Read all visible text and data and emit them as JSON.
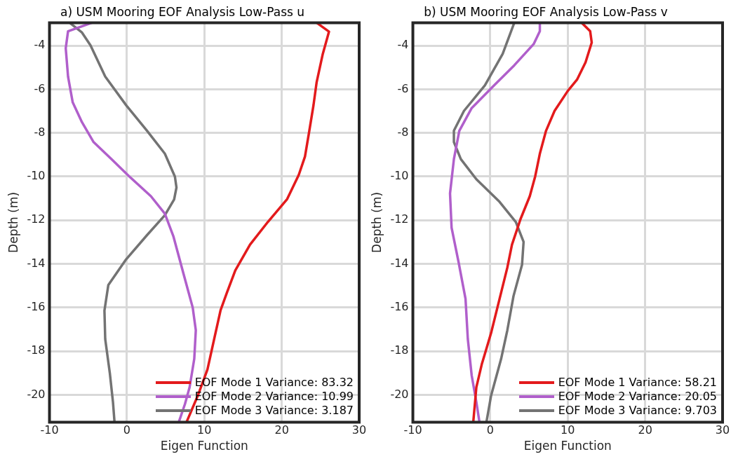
{
  "chart_data": [
    {
      "type": "line",
      "title": "a) USM Mooring EOF Analysis Low-Pass u",
      "xlabel": "Eigen Function",
      "ylabel": "Depth (m)",
      "xlim": [
        -10,
        30
      ],
      "ylim": [
        -21.25,
        -2.95
      ],
      "xticks": [
        -10,
        0,
        10,
        20,
        30
      ],
      "yticks": [
        -20,
        -18,
        -16,
        -14,
        -12,
        -10,
        -8,
        -6,
        -4
      ],
      "grid": true,
      "legend": "bottom right",
      "series": [
        {
          "name": "EOF Mode 1 Variance: 83.32",
          "color": "#e31a1c",
          "x": [
            24.5,
            26.1,
            25.3,
            24.5,
            24.1,
            23.5,
            23.0,
            22.2,
            20.7,
            18.2,
            15.9,
            14.0,
            12.9,
            12.1,
            11.3,
            10.4,
            9.2,
            7.7
          ],
          "values": [
            -2.95,
            -3.36,
            -4.38,
            -5.69,
            -6.73,
            -8.03,
            -9.08,
            -9.92,
            -11.03,
            -12.08,
            -13.12,
            -14.3,
            -15.33,
            -16.12,
            -17.4,
            -18.84,
            -20.0,
            -21.25
          ]
        },
        {
          "name": "EOF Mode 2 Variance: 10.99",
          "color": "#b05fcb",
          "x": [
            -4.5,
            -7.6,
            -7.9,
            -7.6,
            -7.0,
            -5.8,
            -4.3,
            -2.0,
            0.3,
            3.1,
            4.9,
            6.0,
            7.3,
            8.5,
            8.9,
            8.7,
            8.1,
            7.5,
            6.7
          ],
          "values": [
            -2.95,
            -3.34,
            -4.12,
            -5.42,
            -6.6,
            -7.51,
            -8.42,
            -9.2,
            -9.99,
            -10.9,
            -11.7,
            -12.73,
            -14.44,
            -16.0,
            -17.04,
            -18.35,
            -19.65,
            -20.42,
            -21.25
          ]
        },
        {
          "name": "EOF Mode 3 Variance: 3.187",
          "color": "#737373",
          "x": [
            -7.4,
            -5.8,
            -4.7,
            -2.8,
            -0.1,
            2.6,
            4.9,
            6.2,
            6.4,
            6.1,
            4.9,
            2.6,
            -0.1,
            -2.4,
            -2.9,
            -2.8,
            -2.2,
            -1.8,
            -1.6
          ],
          "values": [
            -2.95,
            -3.4,
            -3.99,
            -5.42,
            -6.73,
            -7.9,
            -8.95,
            -10.0,
            -10.5,
            -11.05,
            -11.77,
            -12.68,
            -13.79,
            -14.97,
            -16.14,
            -17.45,
            -19.02,
            -20.33,
            -21.25
          ]
        }
      ]
    },
    {
      "type": "line",
      "title": "b) USM Mooring EOF Analysis Low-Pass v",
      "xlabel": "Eigen Function",
      "ylabel": "Depth (m)",
      "xlim": [
        -10,
        30
      ],
      "ylim": [
        -21.25,
        -2.95
      ],
      "xticks": [
        -10,
        0,
        10,
        20,
        30
      ],
      "yticks": [
        -20,
        -18,
        -16,
        -14,
        -12,
        -10,
        -8,
        -6,
        -4
      ],
      "grid": true,
      "legend": "bottom right",
      "series": [
        {
          "name": "EOF Mode 1 Variance: 58.21",
          "color": "#e31a1c",
          "x": [
            11.8,
            12.9,
            13.1,
            12.3,
            11.2,
            10.0,
            8.3,
            7.2,
            6.4,
            5.8,
            5.1,
            3.9,
            2.8,
            2.2,
            1.2,
            0.1,
            -1.1,
            -1.8,
            -2.2
          ],
          "values": [
            -2.95,
            -3.34,
            -3.86,
            -4.77,
            -5.56,
            -6.08,
            -6.99,
            -7.9,
            -8.95,
            -9.99,
            -10.9,
            -11.95,
            -13.12,
            -14.17,
            -15.6,
            -17.17,
            -18.6,
            -19.65,
            -21.25
          ]
        },
        {
          "name": "EOF Mode 2 Variance: 20.05",
          "color": "#b05fcb",
          "x": [
            6.4,
            6.4,
            5.6,
            3.1,
            0.5,
            -2.4,
            -4.0,
            -4.7,
            -5.2,
            -5.0,
            -4.1,
            -3.2,
            -2.9,
            -2.4,
            -1.8,
            -1.4
          ],
          "values": [
            -2.95,
            -3.34,
            -3.93,
            -4.9,
            -5.82,
            -6.86,
            -7.9,
            -9.2,
            -10.77,
            -12.34,
            -13.91,
            -15.6,
            -17.45,
            -19.12,
            -20.33,
            -21.25
          ]
        },
        {
          "name": "EOF Mode 3 Variance: 9.703",
          "color": "#737373",
          "x": [
            3.1,
            1.6,
            -0.7,
            -3.4,
            -4.7,
            -4.7,
            -3.8,
            -1.8,
            1.2,
            3.3,
            4.3,
            4.1,
            3.0,
            2.2,
            1.4,
            0.1,
            -0.5
          ],
          "values": [
            -2.95,
            -4.38,
            -5.82,
            -6.99,
            -7.9,
            -8.42,
            -9.2,
            -10.12,
            -11.16,
            -12.08,
            -12.99,
            -14.04,
            -15.47,
            -17.04,
            -18.35,
            -20.04,
            -21.25
          ]
        }
      ]
    }
  ]
}
